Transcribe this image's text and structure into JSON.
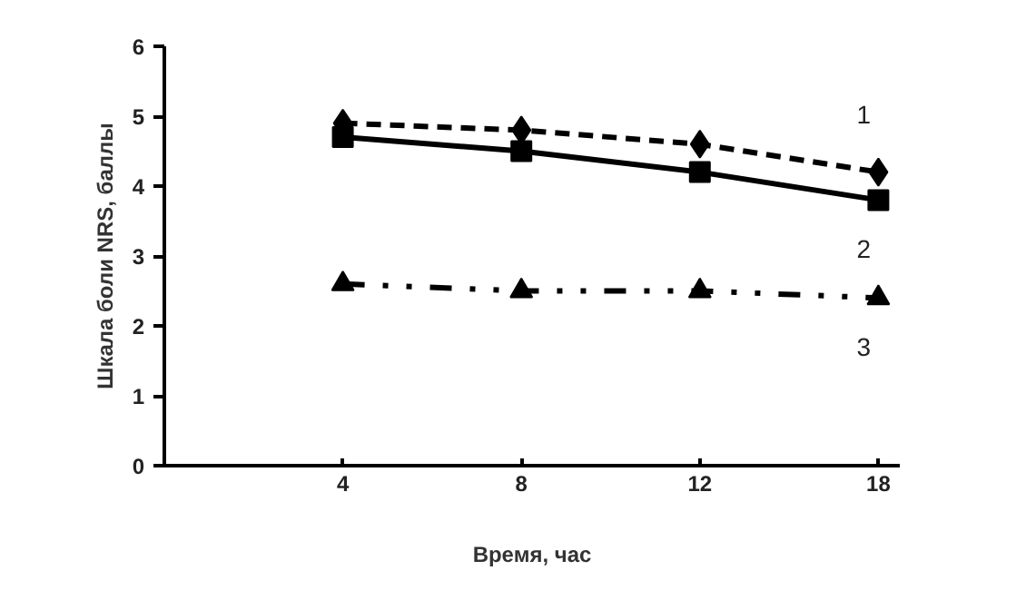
{
  "chart_data": {
    "type": "line",
    "xlabel": "Время, час",
    "ylabel": "Шкала боли NRS, баллы",
    "categories": [
      null,
      "4",
      "8",
      "12",
      "18"
    ],
    "ylim": [
      0,
      6
    ],
    "yticks": [
      0,
      1,
      2,
      3,
      4,
      5,
      6
    ],
    "grid": false,
    "series": [
      {
        "name": "1",
        "color": "#000000",
        "marker": "diamond",
        "line_style": "dashed",
        "values": [
          null,
          4.9,
          4.8,
          4.6,
          4.2
        ]
      },
      {
        "name": "2",
        "color": "#000000",
        "marker": "square",
        "line_style": "solid",
        "values": [
          null,
          4.7,
          4.5,
          4.2,
          3.8
        ]
      },
      {
        "name": "3",
        "color": "#000000",
        "marker": "triangle",
        "line_style": "dashdotdot",
        "values": [
          null,
          2.6,
          2.5,
          2.5,
          2.4
        ]
      }
    ]
  }
}
